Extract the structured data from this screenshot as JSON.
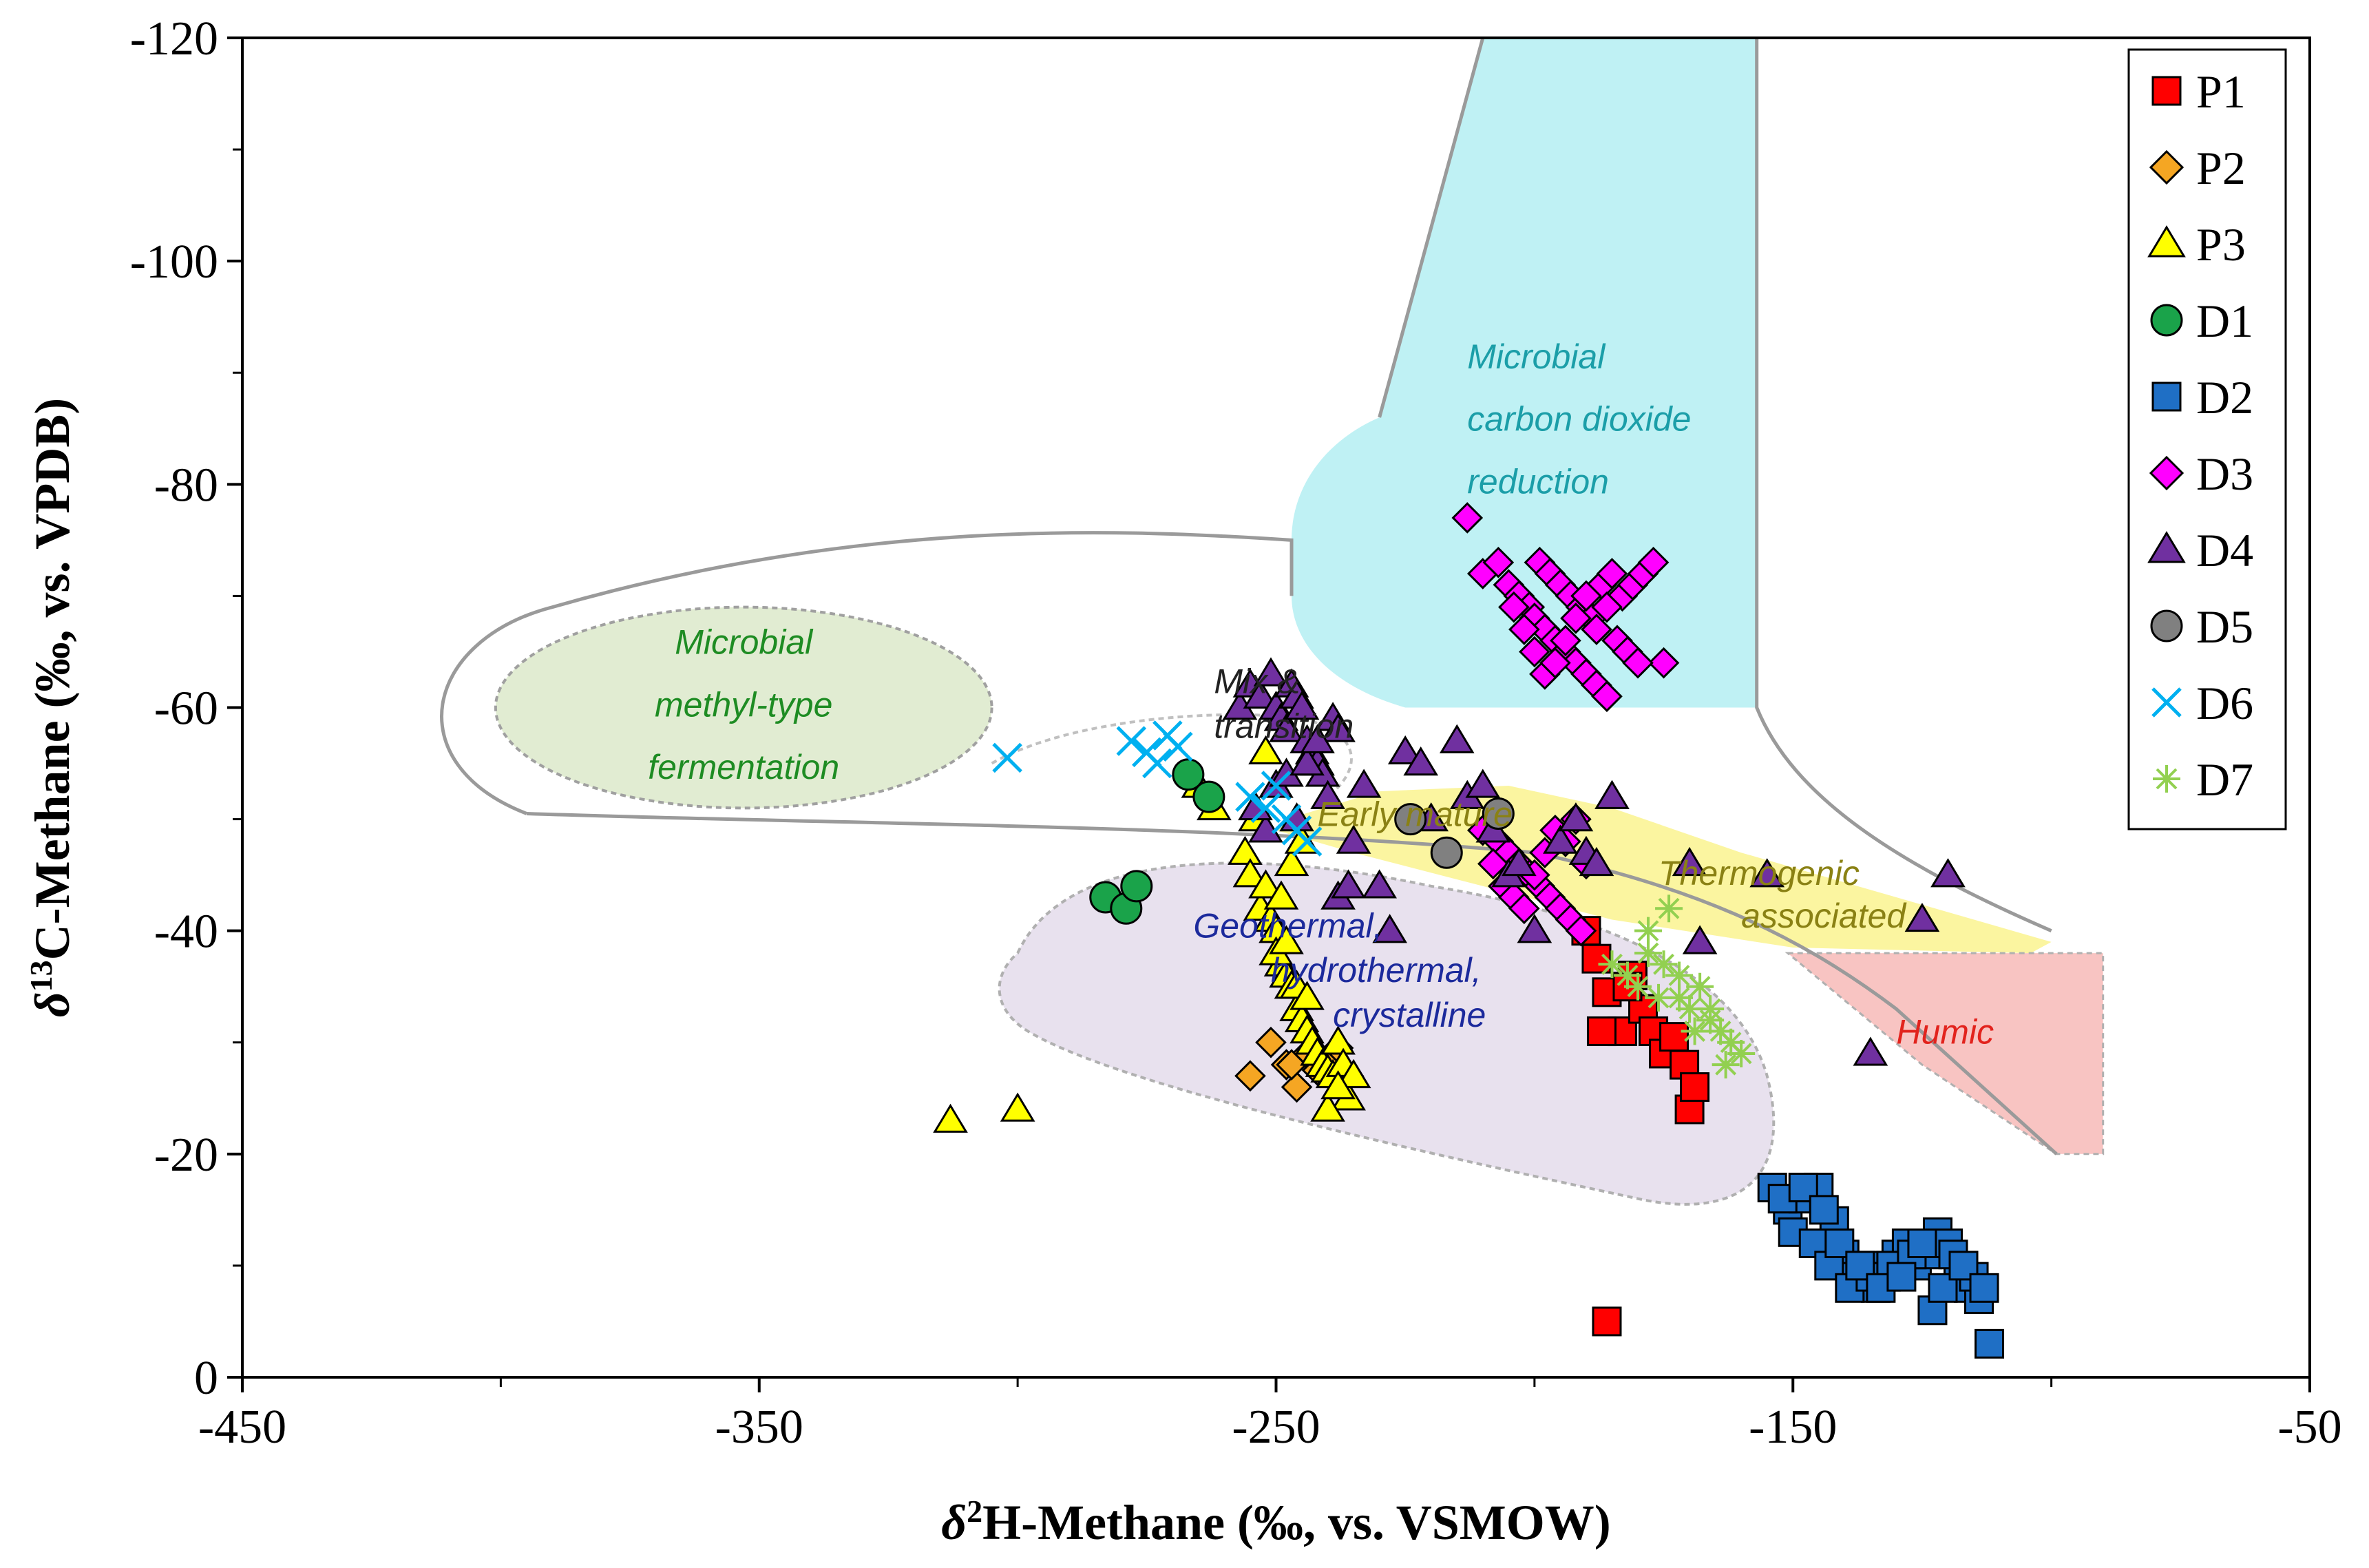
{
  "chart_data": {
    "type": "scatter",
    "title": "",
    "xlabel": "δ²H-Methane (‰, vs. VSMOW)",
    "xlabel_parts": {
      "symbol": "δ",
      "sup": "2",
      "rest": "H-Methane (‰, vs. VSMOW)"
    },
    "ylabel": "δ¹³C-Methane (‰, vs. VPDB)",
    "ylabel_parts": {
      "symbol": "δ",
      "sup": "13",
      "rest": "C-Methane (‰, vs. VPDB)"
    },
    "xlim": [
      -450,
      -50
    ],
    "ylim": [
      0,
      -120
    ],
    "xticks": [
      -450,
      -350,
      -250,
      -150,
      -50
    ],
    "xtick_labels": [
      "-450",
      "-350",
      "-250",
      "-150",
      "-50"
    ],
    "yticks": [
      -120,
      -100,
      -80,
      -60,
      -40,
      -20,
      0
    ],
    "ytick_labels": [
      "-120",
      "-100",
      "-80",
      "-60",
      "-40",
      "-20",
      "0"
    ],
    "legend_position": "top-right",
    "regions": [
      {
        "name": "microbial-fermentation",
        "lines": [
          "Microbial",
          "methyl-type",
          "fermentation"
        ],
        "color": "#e1ecd2",
        "text_color": "#1e8c23"
      },
      {
        "name": "microbial-co2",
        "lines": [
          "Microbial",
          "carbon dioxide",
          "reduction"
        ],
        "color": "#bff1f4",
        "text_color": "#1b9ea8"
      },
      {
        "name": "mix-transition",
        "lines": [
          "Mix &",
          "transition"
        ],
        "color": "#ffffff",
        "text_color": "#222222"
      },
      {
        "name": "early-mature",
        "lines": [
          "Early mature"
        ],
        "color": "#fbf5a0",
        "text_color": "#8a8114"
      },
      {
        "name": "thermogenic",
        "lines": [
          "Thermogenic",
          "associated"
        ],
        "color": "#fbf5a0",
        "text_color": "#8a8114"
      },
      {
        "name": "geothermal",
        "lines": [
          "Geothermal,",
          "hydrothermal,",
          "crystalline"
        ],
        "color": "#e8e1ee",
        "text_color": "#1c2a9c"
      },
      {
        "name": "humic",
        "lines": [
          "Humic"
        ],
        "color": "#f8c4c2",
        "text_color": "#e2231d"
      }
    ],
    "series": [
      {
        "name": "P1",
        "marker": "square",
        "color": "#ff0000",
        "x": [
          -190,
          -188,
          -186,
          -183,
          -181,
          -179,
          -177,
          -175,
          -173,
          -171,
          -170,
          -169,
          -186,
          -182,
          -187
        ],
        "y": [
          -40,
          -37.5,
          -34.5,
          -31,
          -36,
          -33,
          -31,
          -29,
          -30.5,
          -28,
          -24,
          -26,
          -5,
          -35,
          -31
        ]
      },
      {
        "name": "P2",
        "marker": "diamond",
        "color": "#f5a623",
        "x": [
          -255,
          -248,
          -246,
          -244,
          -242,
          -240,
          -238,
          -236,
          -251,
          -247
        ],
        "y": [
          -27,
          -28,
          -26,
          -29,
          -27.5,
          -28.5,
          -29.5,
          -27,
          -30,
          -28
        ]
      },
      {
        "name": "P3",
        "marker": "triangle",
        "color": "#ffff00",
        "x": [
          -313,
          -300,
          -265,
          -262,
          -256,
          -255,
          -253,
          -251,
          -250,
          -249,
          -248,
          -247,
          -246,
          -245,
          -244,
          -243,
          -242,
          -241,
          -240,
          -239,
          -238,
          -237,
          -236,
          -235,
          -250,
          -248,
          -246,
          -244,
          -252,
          -249,
          -247,
          -245,
          -243,
          -241,
          -254,
          -252,
          -240,
          -238
        ],
        "y": [
          -23,
          -24,
          -53,
          -51,
          -47,
          -45,
          -42,
          -41,
          -40,
          -37,
          -36,
          -35,
          -33,
          -32,
          -31,
          -30,
          -29,
          -28,
          -27.5,
          -27,
          -30,
          -28,
          -25,
          -27,
          -38,
          -39,
          -35,
          -34,
          -44,
          -43,
          -46,
          -48,
          -55,
          -54,
          -50,
          -56,
          -24,
          -26
        ]
      },
      {
        "name": "D1",
        "marker": "circle",
        "color": "#1aa34a",
        "x": [
          -283,
          -279,
          -277,
          -267,
          -263
        ],
        "y": [
          -43,
          -42,
          -44,
          -54,
          -52
        ]
      },
      {
        "name": "D2",
        "marker": "square",
        "color": "#1f6fc5",
        "x": [
          -154,
          -151,
          -148,
          -145,
          -142,
          -140,
          -138,
          -136,
          -134,
          -132,
          -130,
          -128,
          -126,
          -124,
          -122,
          -120,
          -118,
          -116,
          -114,
          -112,
          -150,
          -146,
          -143,
          -139,
          -135,
          -131,
          -127,
          -123,
          -119,
          -115,
          -152,
          -148,
          -144,
          -141,
          -137,
          -133,
          -129,
          -125,
          -121,
          -117,
          -113
        ],
        "y": [
          -17,
          -15,
          -16,
          -17,
          -14,
          -11,
          -9,
          -10,
          -8,
          -9,
          -11,
          -12,
          -10,
          -11,
          -13,
          -12,
          -9,
          -8,
          -7,
          -3,
          -13,
          -12,
          -10,
          -8,
          -9,
          -10,
          -11,
          -6,
          -11,
          -9,
          -16,
          -17,
          -15,
          -12,
          -10,
          -8,
          -9,
          -12,
          -8,
          -10,
          -8
        ]
      },
      {
        "name": "D3",
        "marker": "diamond",
        "color": "#ff00ff",
        "x": [
          -213,
          -210,
          -207,
          -205,
          -203,
          -201,
          -199,
          -197,
          -195,
          -193,
          -191,
          -189,
          -187,
          -185,
          -183,
          -181,
          -179,
          -177,
          -175,
          -200,
          -198,
          -196,
          -194,
          -192,
          -190,
          -188,
          -186,
          -204,
          -202,
          -200,
          -198,
          -196,
          -194,
          -192,
          -190,
          -188,
          -186,
          -184,
          -182,
          -180,
          -207,
          -205,
          -203,
          -201,
          -199,
          -197,
          -195,
          -193,
          -191,
          -210,
          -208,
          -206,
          -204,
          -202,
          -200,
          -198,
          -196,
          -194,
          -192,
          -190
        ],
        "y": [
          -77,
          -72,
          -73,
          -71,
          -70,
          -69,
          -73,
          -72,
          -71,
          -70,
          -69,
          -68,
          -71,
          -72,
          -70,
          -71,
          -72,
          -73,
          -64,
          -68,
          -67,
          -66,
          -65,
          -64,
          -63,
          -62,
          -61,
          -69,
          -67,
          -65,
          -63,
          -64,
          -66,
          -68,
          -70,
          -67,
          -69,
          -66,
          -65,
          -64,
          -48,
          -47,
          -46,
          -45,
          -44,
          -43,
          -42,
          -41,
          -40,
          -49,
          -46,
          -44,
          -43,
          -42,
          -45,
          -47,
          -49,
          -48,
          -50,
          -46
        ]
      },
      {
        "name": "D4",
        "marker": "triangle",
        "color": "#7030a0",
        "x": [
          -257,
          -255,
          -253,
          -251,
          -250,
          -249,
          -248,
          -247,
          -246,
          -245,
          -244,
          -243,
          -242,
          -241,
          -240,
          -239,
          -238,
          -235,
          -233,
          -230,
          -228,
          -225,
          -222,
          -220,
          -215,
          -213,
          -210,
          -208,
          -205,
          -203,
          -200,
          -195,
          -192,
          -190,
          -188,
          -185,
          -170,
          -168,
          -155,
          -135,
          -125,
          -120,
          -250,
          -248,
          -246,
          -244,
          -242,
          -252,
          -254,
          -238,
          -236
        ],
        "y": [
          -60,
          -62,
          -61,
          -63,
          -60,
          -59,
          -58,
          -62,
          -61,
          -60,
          -57,
          -56,
          -55,
          -54,
          -52,
          -59,
          -58,
          -48,
          -53,
          -44,
          -40,
          -56,
          -55,
          -50,
          -57,
          -52,
          -53,
          -49,
          -45,
          -46,
          -40,
          -48,
          -50,
          -47,
          -46,
          -52,
          -46,
          -39,
          -45,
          -29,
          -41,
          -45,
          -53,
          -54,
          -50,
          -55,
          -57,
          -49,
          -51,
          -43,
          -44
        ]
      },
      {
        "name": "D5",
        "marker": "circle",
        "color": "#808080",
        "x": [
          -224,
          -217,
          -207
        ],
        "y": [
          -50,
          -47,
          -50.5
        ]
      },
      {
        "name": "D6",
        "marker": "x",
        "color": "#00b0f0",
        "x": [
          -302,
          -278,
          -275,
          -273,
          -271,
          -269,
          -255,
          -252,
          -250,
          -248,
          -246,
          -244
        ],
        "y": [
          -55.5,
          -57,
          -56,
          -55,
          -57.5,
          -56.5,
          -52,
          -51,
          -53,
          -50,
          -49,
          -48
        ]
      },
      {
        "name": "D7",
        "marker": "asterisk",
        "color": "#92d050",
        "x": [
          -185,
          -182,
          -180,
          -178,
          -176,
          -174,
          -172,
          -170,
          -168,
          -166,
          -164,
          -162,
          -160,
          -178,
          -175,
          -172,
          -169,
          -166,
          -163
        ],
        "y": [
          -37,
          -36,
          -35,
          -38,
          -34,
          -42,
          -36,
          -33,
          -35,
          -32,
          -31,
          -30,
          -29,
          -40,
          -37,
          -34,
          -31,
          -33,
          -28
        ]
      }
    ]
  }
}
